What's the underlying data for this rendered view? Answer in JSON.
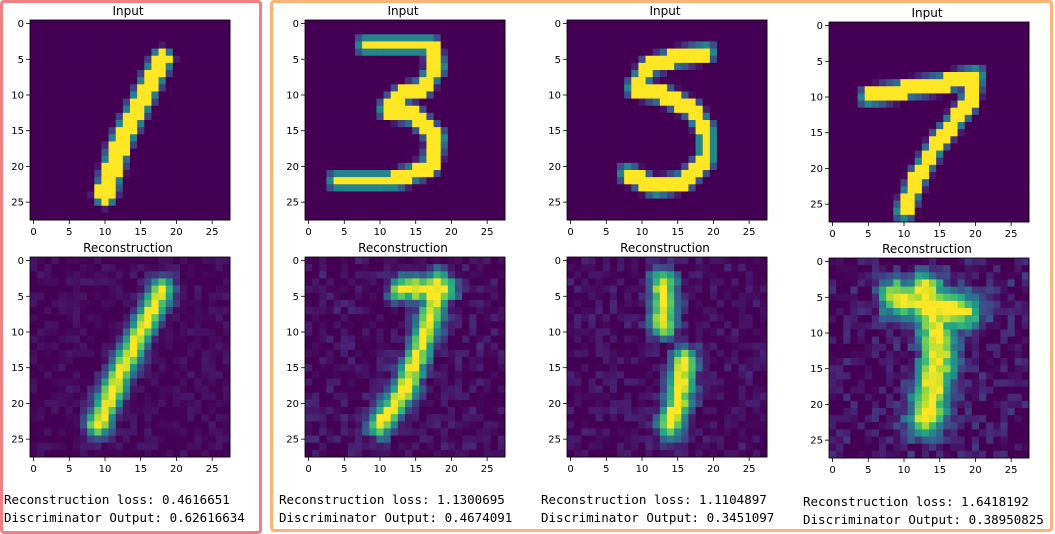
{
  "chart_data": {
    "type": "heatmap",
    "panels": [
      {
        "title": "Input",
        "digit": "1",
        "xticks": [
          0,
          5,
          10,
          15,
          20,
          25
        ],
        "yticks": [
          0,
          5,
          10,
          15,
          20,
          25
        ]
      },
      {
        "title": "Input",
        "digit": "3",
        "xticks": [
          0,
          5,
          10,
          15,
          20,
          25
        ],
        "yticks": [
          0,
          5,
          10,
          15,
          20,
          25
        ]
      },
      {
        "title": "Input",
        "digit": "5",
        "xticks": [
          0,
          5,
          10,
          15,
          20,
          25
        ],
        "yticks": [
          0,
          5,
          10,
          15,
          20,
          25
        ]
      },
      {
        "title": "Input",
        "digit": "7",
        "xticks": [
          0,
          5,
          10,
          15,
          20,
          25
        ],
        "yticks": [
          0,
          5,
          10,
          15,
          20,
          25
        ]
      },
      {
        "title": "Reconstruction",
        "xticks": [
          0,
          5,
          10,
          15,
          20,
          25
        ],
        "yticks": [
          0,
          5,
          10,
          15,
          20,
          25
        ]
      },
      {
        "title": "Reconstruction",
        "xticks": [
          0,
          5,
          10,
          15,
          20,
          25
        ],
        "yticks": [
          0,
          5,
          10,
          15,
          20,
          25
        ]
      },
      {
        "title": "Reconstruction",
        "xticks": [
          0,
          5,
          10,
          15,
          20,
          25
        ],
        "yticks": [
          0,
          5,
          10,
          15,
          20,
          25
        ]
      },
      {
        "title": "Reconstruction",
        "xticks": [
          0,
          5,
          10,
          15,
          20,
          25
        ],
        "yticks": [
          0,
          5,
          10,
          15,
          20,
          25
        ]
      }
    ],
    "xlim": [
      -0.5,
      27.5
    ],
    "ylim": [
      27.5,
      -0.5
    ],
    "colormap": "viridis"
  },
  "metrics": [
    {
      "loss": "Reconstruction loss: 0.4616651",
      "disc": "Discriminator Output: 0.62616634"
    },
    {
      "loss": "Reconstruction loss: 1.1300695",
      "disc": "Discriminator Output: 0.4674091"
    },
    {
      "loss": "Reconstruction loss: 1.1104897",
      "disc": "Discriminator Output: 0.3451097"
    },
    {
      "loss": "Reconstruction loss: 1.6418192",
      "disc": "Discriminator Output: 0.38950825"
    }
  ],
  "colors": {
    "background": "#440154",
    "highlight": "#fde725",
    "group_border_1": "#f07f86",
    "group_border_2": "#f9b47a"
  }
}
